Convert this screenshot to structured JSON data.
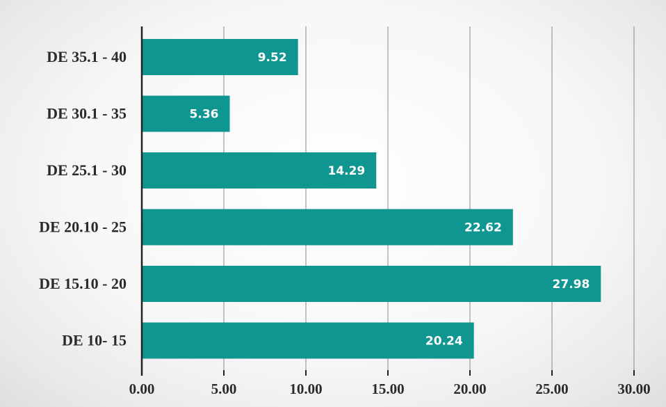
{
  "chart_data": {
    "type": "bar",
    "orientation": "horizontal",
    "title": "",
    "xlabel": "",
    "ylabel": "",
    "categories": [
      "DE 35.1 - 40",
      "DE 30.1 - 35",
      "DE 25.1 - 30",
      "DE 20.10 - 25",
      "DE 15.10 - 20",
      "DE 10- 15"
    ],
    "values": [
      9.52,
      5.36,
      14.29,
      22.62,
      27.98,
      20.24
    ],
    "xlim": [
      0,
      30
    ],
    "xticks": [
      "0.00",
      "5.00",
      "10.00",
      "15.00",
      "20.00",
      "25.00",
      "30.00"
    ],
    "grid": "vertical",
    "legend": "none",
    "bar_color": "#0f9690",
    "data_labels": true
  }
}
